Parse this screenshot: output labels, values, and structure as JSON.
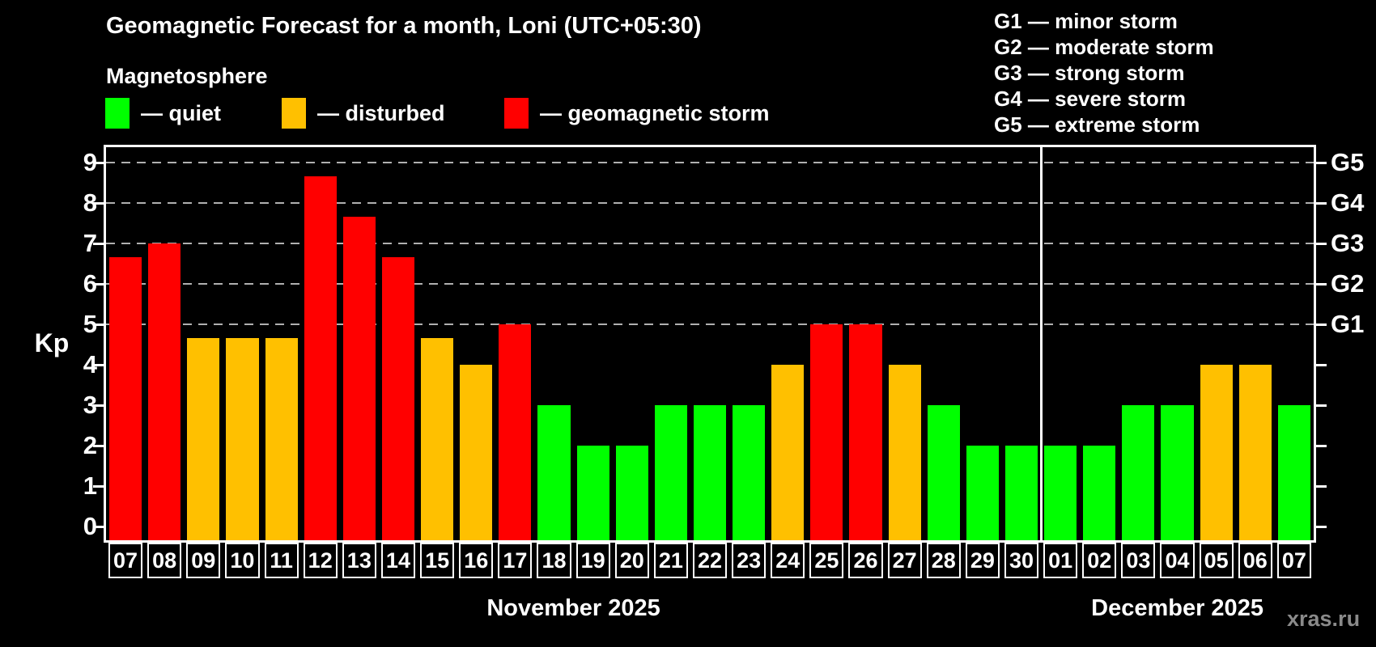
{
  "title": "Geomagnetic Forecast for a month, Loni (UTC+05:30)",
  "subtitle": "Magnetosphere",
  "legend": [
    {
      "key": "quiet",
      "label": "— quiet",
      "color": "#00ff00"
    },
    {
      "key": "disturbed",
      "label": "— disturbed",
      "color": "#ffc000"
    },
    {
      "key": "storm",
      "label": "— geomagnetic storm",
      "color": "#ff0000"
    }
  ],
  "g_scale_legend": [
    {
      "label": "G1 — minor storm"
    },
    {
      "label": "G2 — moderate storm"
    },
    {
      "label": "G3 — strong storm"
    },
    {
      "label": "G4 — severe storm"
    },
    {
      "label": "G5 — extreme storm"
    }
  ],
  "watermark": "xras.ru",
  "chart_data": {
    "type": "bar",
    "title": "Geomagnetic Forecast for a month, Loni (UTC+05:30)",
    "ylabel": "Kp",
    "ylim": [
      0,
      9.4
    ],
    "y_ticks": [
      0,
      1,
      2,
      3,
      4,
      5,
      6,
      7,
      8,
      9
    ],
    "grid_levels": [
      5,
      6,
      7,
      8,
      9
    ],
    "grid_style": "dashed",
    "right_axis": [
      {
        "kp": 5,
        "label": "G1"
      },
      {
        "kp": 6,
        "label": "G2"
      },
      {
        "kp": 7,
        "label": "G3"
      },
      {
        "kp": 8,
        "label": "G4"
      },
      {
        "kp": 9,
        "label": "G5"
      }
    ],
    "colors": {
      "quiet": "#00ff00",
      "disturbed": "#ffc000",
      "storm": "#ff0000"
    },
    "months": [
      {
        "label": "November 2025",
        "bars": [
          {
            "day": "07",
            "kp": 6.67,
            "level": "storm"
          },
          {
            "day": "08",
            "kp": 7.0,
            "level": "storm"
          },
          {
            "day": "09",
            "kp": 4.67,
            "level": "disturbed"
          },
          {
            "day": "10",
            "kp": 4.67,
            "level": "disturbed"
          },
          {
            "day": "11",
            "kp": 4.67,
            "level": "disturbed"
          },
          {
            "day": "12",
            "kp": 8.67,
            "level": "storm"
          },
          {
            "day": "13",
            "kp": 7.67,
            "level": "storm"
          },
          {
            "day": "14",
            "kp": 6.67,
            "level": "storm"
          },
          {
            "day": "15",
            "kp": 4.67,
            "level": "disturbed"
          },
          {
            "day": "16",
            "kp": 4.0,
            "level": "disturbed"
          },
          {
            "day": "17",
            "kp": 5.0,
            "level": "storm"
          },
          {
            "day": "18",
            "kp": 3.0,
            "level": "quiet"
          },
          {
            "day": "19",
            "kp": 2.0,
            "level": "quiet"
          },
          {
            "day": "20",
            "kp": 2.0,
            "level": "quiet"
          },
          {
            "day": "21",
            "kp": 3.0,
            "level": "quiet"
          },
          {
            "day": "22",
            "kp": 3.0,
            "level": "quiet"
          },
          {
            "day": "23",
            "kp": 3.0,
            "level": "quiet"
          },
          {
            "day": "24",
            "kp": 4.0,
            "level": "disturbed"
          },
          {
            "day": "25",
            "kp": 5.0,
            "level": "storm"
          },
          {
            "day": "26",
            "kp": 5.0,
            "level": "storm"
          },
          {
            "day": "27",
            "kp": 4.0,
            "level": "disturbed"
          },
          {
            "day": "28",
            "kp": 3.0,
            "level": "quiet"
          },
          {
            "day": "29",
            "kp": 2.0,
            "level": "quiet"
          },
          {
            "day": "30",
            "kp": 2.0,
            "level": "quiet"
          }
        ]
      },
      {
        "label": "December 2025",
        "bars": [
          {
            "day": "01",
            "kp": 2.0,
            "level": "quiet"
          },
          {
            "day": "02",
            "kp": 2.0,
            "level": "quiet"
          },
          {
            "day": "03",
            "kp": 3.0,
            "level": "quiet"
          },
          {
            "day": "04",
            "kp": 3.0,
            "level": "quiet"
          },
          {
            "day": "05",
            "kp": 4.0,
            "level": "disturbed"
          },
          {
            "day": "06",
            "kp": 4.0,
            "level": "disturbed"
          },
          {
            "day": "07",
            "kp": 3.0,
            "level": "quiet"
          }
        ]
      }
    ]
  }
}
